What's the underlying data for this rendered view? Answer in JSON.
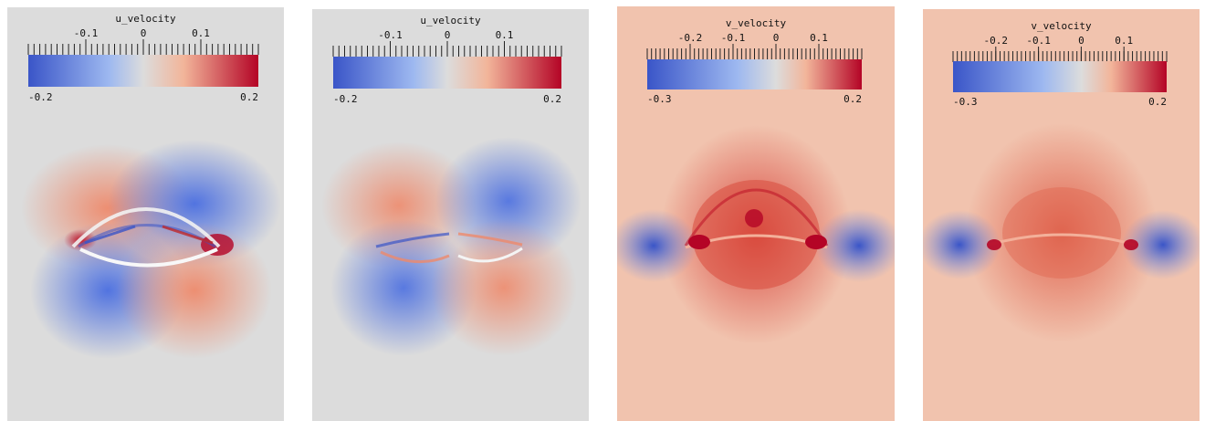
{
  "panels": [
    {
      "title": "u_velocity",
      "min_label": "-0.2",
      "max_label": "0.2",
      "vmin": -0.2,
      "vmax": 0.2,
      "tick_labels": [
        "-0.1",
        "0",
        "0.1"
      ],
      "tick_values": [
        -0.1,
        0,
        0.1
      ],
      "colors": {
        "low": "#3a55c8",
        "mid": "#dcdcdc",
        "high": "#b40426"
      }
    },
    {
      "title": "u_velocity",
      "min_label": "-0.2",
      "max_label": "0.2",
      "vmin": -0.2,
      "vmax": 0.2,
      "tick_labels": [
        "-0.1",
        "0",
        "0.1"
      ],
      "tick_values": [
        -0.1,
        0,
        0.1
      ],
      "colors": {
        "low": "#3a55c8",
        "mid": "#dcdcdc",
        "high": "#b40426"
      }
    },
    {
      "title": "v_velocity",
      "min_label": "-0.3",
      "max_label": "0.2",
      "vmin": -0.3,
      "vmax": 0.2,
      "tick_labels": [
        "-0.2",
        "-0.1",
        "0",
        "0.1"
      ],
      "tick_values": [
        -0.2,
        -0.1,
        0,
        0.1
      ],
      "colors": {
        "low": "#3a55c8",
        "mid": "#dcdcdc",
        "high": "#b40426"
      }
    },
    {
      "title": "v_velocity",
      "min_label": "-0.3",
      "max_label": "0.2",
      "vmin": -0.3,
      "vmax": 0.2,
      "tick_labels": [
        "-0.2",
        "-0.1",
        "0",
        "0.1"
      ],
      "tick_values": [
        -0.2,
        -0.1,
        0,
        0.1
      ],
      "colors": {
        "low": "#3a55c8",
        "mid": "#dcdcdc",
        "high": "#b40426"
      }
    }
  ]
}
